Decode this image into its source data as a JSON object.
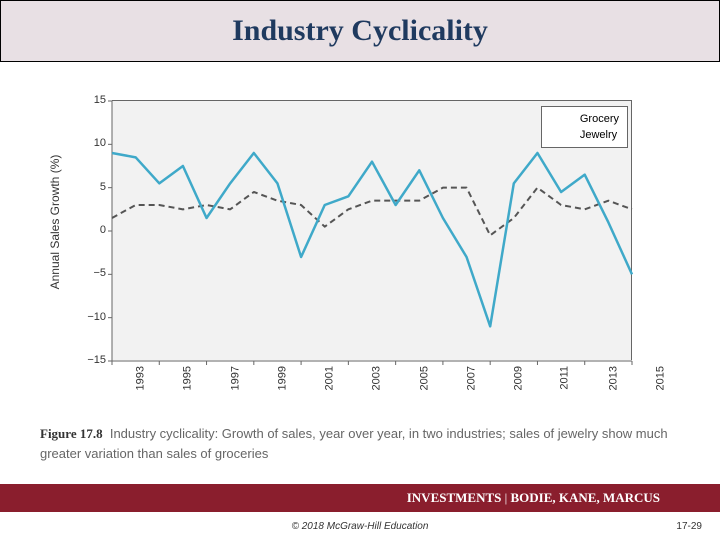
{
  "title": "Industry Cyclicality",
  "chart": {
    "type": "line",
    "y_axis_label": "Annual Sales Growth (%)",
    "ylim": [
      -15,
      15
    ],
    "yticks": [
      -15,
      -10,
      -5,
      0,
      5,
      10,
      15
    ],
    "years": [
      1993,
      1994,
      1995,
      1996,
      1997,
      1998,
      1999,
      2000,
      2001,
      2002,
      2003,
      2004,
      2005,
      2006,
      2007,
      2008,
      2009,
      2010,
      2011,
      2012,
      2013,
      2014,
      2015
    ],
    "x_tick_years": [
      1993,
      1995,
      1997,
      1999,
      2001,
      2003,
      2005,
      2007,
      2009,
      2011,
      2013,
      2015
    ],
    "series": {
      "grocery": {
        "label": "Grocery",
        "color": "#555555",
        "dash": "6,4",
        "width": 2,
        "values": [
          1.5,
          3.0,
          3.0,
          2.5,
          3.0,
          2.5,
          4.5,
          3.5,
          3.0,
          0.5,
          2.5,
          3.5,
          3.5,
          3.5,
          5.0,
          5.0,
          -0.5,
          1.5,
          5.0,
          3.0,
          2.5,
          3.5,
          2.5
        ]
      },
      "jewelry": {
        "label": "Jewelry",
        "color": "#3fa9c9",
        "dash": "none",
        "width": 2.5,
        "values": [
          9.0,
          8.5,
          5.5,
          7.5,
          1.5,
          5.5,
          9.0,
          5.5,
          -3.0,
          3.0,
          4.0,
          8.0,
          3.0,
          7.0,
          1.5,
          -3.0,
          -11.0,
          5.5,
          9.0,
          4.5,
          6.5,
          1.0,
          -5.0
        ]
      }
    },
    "plot_bg": "#f2f2f2",
    "grid_color": "#666666",
    "legend_bg": "#ffffff",
    "legend_border": "#666666"
  },
  "caption": {
    "fig_label": "Figure 17.8",
    "text": "Industry cyclicality: Growth of sales, year over year, in two industries; sales of jewelry show much greater variation than sales of groceries"
  },
  "footer": {
    "brand": "INVESTMENTS",
    "authors": "BODIE, KANE, MARCUS",
    "bar_color": "#8a1e2d"
  },
  "copyright": "© 2018 McGraw-Hill Education",
  "page_number": "17-29"
}
